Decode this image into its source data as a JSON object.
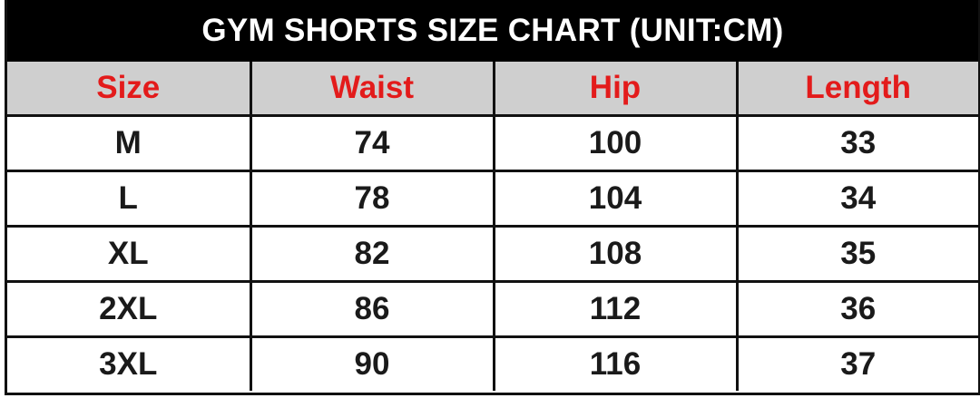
{
  "title": "GYM SHORTS SIZE CHART (UNIT:CM)",
  "colors": {
    "title_bg": "#000000",
    "header_bg": "#cfcfcf",
    "header_text": "#e31b1b"
  },
  "headers": [
    "Size",
    "Waist",
    "Hip",
    "Length"
  ],
  "rows": [
    [
      "M",
      "74",
      "100",
      "33"
    ],
    [
      "L",
      "78",
      "104",
      "34"
    ],
    [
      "XL",
      "82",
      "108",
      "35"
    ],
    [
      "2XL",
      "86",
      "112",
      "36"
    ],
    [
      "3XL",
      "90",
      "116",
      "37"
    ]
  ]
}
